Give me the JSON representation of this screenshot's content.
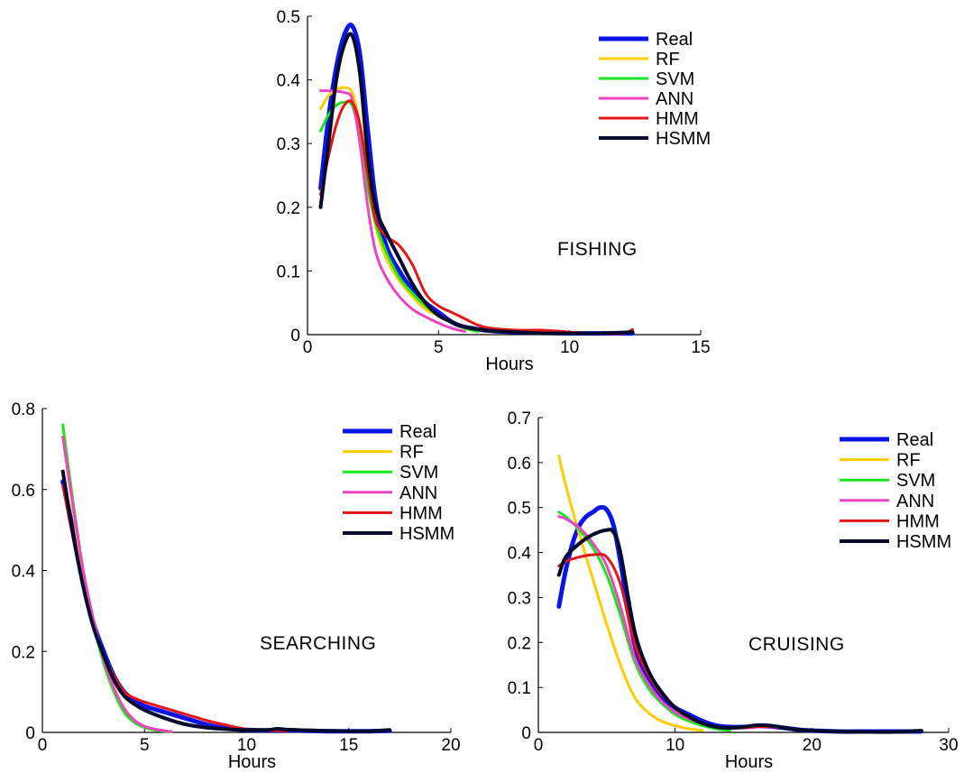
{
  "series_styles": [
    {
      "name": "Real",
      "color": "#0a14e6"
    },
    {
      "name": "RF",
      "color": "#ffcc00"
    },
    {
      "name": "SVM",
      "color": "#19e619"
    },
    {
      "name": "ANN",
      "color": "#ee44c4"
    },
    {
      "name": "HMM",
      "color": "#e61414"
    },
    {
      "name": "HSMM",
      "color": "#050a2a"
    }
  ],
  "chart_data": [
    {
      "type": "line",
      "title": "",
      "annotation": "FISHING",
      "xlabel": "Hours",
      "ylabel": "",
      "xlim": [
        0,
        15
      ],
      "ylim": [
        0,
        0.5
      ],
      "xticks": [
        0,
        5,
        10,
        15
      ],
      "yticks": [
        0,
        0.1,
        0.2,
        0.3,
        0.4,
        0.5
      ],
      "ytick_labels": [
        "0",
        "0.1",
        "0.2",
        "0.3",
        "0.4",
        "0.5"
      ],
      "legend_position": "top-right",
      "series": [
        {
          "name": "Real",
          "x": [
            0.5,
            0.8,
            1.1,
            1.4,
            1.7,
            2.0,
            2.3,
            2.6,
            3.0,
            3.5,
            4.0,
            4.5,
            5.0,
            5.5,
            6.0,
            7.0,
            8.0,
            9.0,
            10.0,
            11.0,
            12.4
          ],
          "y": [
            0.23,
            0.34,
            0.42,
            0.47,
            0.485,
            0.44,
            0.32,
            0.21,
            0.14,
            0.1,
            0.07,
            0.05,
            0.035,
            0.02,
            0.012,
            0.006,
            0.004,
            0.003,
            0.002,
            0.002,
            0.002
          ]
        },
        {
          "name": "RF",
          "x": [
            0.5,
            0.8,
            1.1,
            1.4,
            1.7,
            2.0,
            2.3,
            2.6,
            3.0,
            3.5,
            4.0,
            4.5,
            5.0,
            5.5,
            6.0,
            6.5
          ],
          "y": [
            0.355,
            0.375,
            0.385,
            0.388,
            0.38,
            0.33,
            0.24,
            0.17,
            0.12,
            0.085,
            0.06,
            0.04,
            0.03,
            0.02,
            0.01,
            0.005
          ]
        },
        {
          "name": "SVM",
          "x": [
            0.5,
            0.8,
            1.1,
            1.4,
            1.7,
            2.0,
            2.3,
            2.6,
            3.0,
            3.5,
            4.0,
            4.5,
            5.0,
            5.5,
            6.0,
            6.5
          ],
          "y": [
            0.32,
            0.345,
            0.36,
            0.365,
            0.36,
            0.31,
            0.23,
            0.175,
            0.13,
            0.09,
            0.065,
            0.045,
            0.03,
            0.02,
            0.01,
            0.005
          ]
        },
        {
          "name": "ANN",
          "x": [
            0.5,
            0.8,
            1.1,
            1.4,
            1.7,
            2.0,
            2.3,
            2.6,
            3.0,
            3.5,
            4.0,
            4.5,
            5.0,
            5.5,
            6.0
          ],
          "y": [
            0.383,
            0.383,
            0.382,
            0.38,
            0.37,
            0.3,
            0.2,
            0.13,
            0.09,
            0.06,
            0.04,
            0.028,
            0.018,
            0.01,
            0.005
          ]
        },
        {
          "name": "HMM",
          "x": [
            0.5,
            0.8,
            1.1,
            1.4,
            1.7,
            2.0,
            2.3,
            2.6,
            3.0,
            3.5,
            4.0,
            4.5,
            5.0,
            5.5,
            6.0,
            6.5,
            7.0,
            8.0,
            9.0,
            10.0,
            11.0,
            12.0,
            12.4
          ],
          "y": [
            0.22,
            0.28,
            0.33,
            0.36,
            0.365,
            0.33,
            0.25,
            0.18,
            0.155,
            0.14,
            0.11,
            0.065,
            0.045,
            0.035,
            0.025,
            0.015,
            0.01,
            0.007,
            0.007,
            0.004,
            0.002,
            0.002,
            0.008
          ]
        },
        {
          "name": "HSMM",
          "x": [
            0.5,
            0.8,
            1.1,
            1.4,
            1.7,
            2.0,
            2.3,
            2.6,
            3.0,
            3.5,
            4.0,
            4.5,
            5.0,
            5.5,
            6.0,
            7.0,
            8.0,
            9.0,
            10.0,
            11.0,
            12.4
          ],
          "y": [
            0.2,
            0.3,
            0.4,
            0.455,
            0.47,
            0.41,
            0.28,
            0.2,
            0.16,
            0.12,
            0.08,
            0.05,
            0.03,
            0.02,
            0.012,
            0.006,
            0.004,
            0.002,
            0.002,
            0.002,
            0.004
          ]
        }
      ]
    },
    {
      "type": "line",
      "title": "",
      "annotation": "SEARCHING",
      "xlabel": "Hours",
      "ylabel": "",
      "xlim": [
        0,
        20
      ],
      "ylim": [
        0,
        0.8
      ],
      "xticks": [
        0,
        5,
        10,
        15,
        20
      ],
      "yticks": [
        0,
        0.2,
        0.4,
        0.6,
        0.8
      ],
      "ytick_labels": [
        "0",
        "0.2",
        "0.4",
        "0.6",
        "0.8"
      ],
      "legend_position": "top-right",
      "series": [
        {
          "name": "Real",
          "x": [
            1.0,
            1.5,
            2.0,
            2.5,
            3.0,
            3.5,
            4.0,
            4.5,
            5.0,
            6.0,
            7.0,
            8.0,
            9.0,
            10.0,
            11.0,
            12.0,
            13.0,
            14.0,
            15.0,
            16.0,
            17.0
          ],
          "y": [
            0.62,
            0.5,
            0.37,
            0.27,
            0.2,
            0.14,
            0.1,
            0.08,
            0.065,
            0.05,
            0.035,
            0.02,
            0.01,
            0.006,
            0.005,
            0.005,
            0.004,
            0.003,
            0.003,
            0.003,
            0.004
          ]
        },
        {
          "name": "RF",
          "x": [
            1.0,
            1.5,
            2.0,
            2.5,
            3.0,
            3.5,
            4.0,
            4.5,
            5.0,
            5.5,
            6.0,
            6.3
          ],
          "y": [
            0.73,
            0.55,
            0.39,
            0.27,
            0.18,
            0.11,
            0.06,
            0.03,
            0.015,
            0.008,
            0.004,
            0.002
          ]
        },
        {
          "name": "SVM",
          "x": [
            1.0,
            1.5,
            2.0,
            2.5,
            3.0,
            3.5,
            4.0,
            4.5,
            5.0,
            5.5,
            6.0,
            6.3
          ],
          "y": [
            0.76,
            0.57,
            0.4,
            0.27,
            0.17,
            0.1,
            0.05,
            0.025,
            0.012,
            0.006,
            0.003,
            0.002
          ]
        },
        {
          "name": "ANN",
          "x": [
            1.0,
            1.5,
            2.0,
            2.5,
            3.0,
            3.5,
            4.0,
            4.5,
            5.0,
            5.5,
            6.0,
            6.3
          ],
          "y": [
            0.73,
            0.56,
            0.4,
            0.28,
            0.18,
            0.11,
            0.06,
            0.03,
            0.015,
            0.008,
            0.004,
            0.002
          ]
        },
        {
          "name": "HMM",
          "x": [
            1.0,
            1.5,
            2.0,
            2.5,
            3.0,
            3.5,
            4.0,
            4.5,
            5.0,
            6.0,
            7.0,
            8.0,
            9.0,
            10.0,
            11.0,
            12.0
          ],
          "y": [
            0.61,
            0.48,
            0.36,
            0.26,
            0.19,
            0.14,
            0.1,
            0.085,
            0.075,
            0.06,
            0.045,
            0.03,
            0.018,
            0.008,
            0.005,
            0.004
          ]
        },
        {
          "name": "HSMM",
          "x": [
            1.0,
            1.5,
            2.0,
            2.5,
            3.0,
            3.5,
            4.0,
            4.5,
            5.0,
            6.0,
            7.0,
            8.0,
            9.0,
            10.0,
            11.0,
            11.5,
            12.0,
            13.0,
            14.0,
            15.0,
            16.0,
            17.0
          ],
          "y": [
            0.645,
            0.49,
            0.36,
            0.26,
            0.19,
            0.13,
            0.09,
            0.07,
            0.055,
            0.035,
            0.02,
            0.012,
            0.008,
            0.006,
            0.006,
            0.009,
            0.007,
            0.005,
            0.004,
            0.003,
            0.003,
            0.006
          ]
        }
      ]
    },
    {
      "type": "line",
      "title": "",
      "annotation": "CRUISING",
      "xlabel": "Hours",
      "ylabel": "",
      "xlim": [
        0,
        30
      ],
      "ylim": [
        0,
        0.7
      ],
      "xticks": [
        0,
        10,
        20,
        30
      ],
      "yticks": [
        0,
        0.1,
        0.2,
        0.3,
        0.4,
        0.5,
        0.6,
        0.7
      ],
      "ytick_labels": [
        "0",
        "0.1",
        "0.2",
        "0.3",
        "0.4",
        "0.5",
        "0.6",
        "0.7"
      ],
      "legend_position": "top-right",
      "series": [
        {
          "name": "Real",
          "x": [
            1.5,
            2.0,
            2.5,
            3.0,
            3.5,
            4.0,
            4.5,
            5.0,
            5.5,
            6.0,
            7.0,
            8.0,
            9.0,
            10.0,
            11.0,
            12.0,
            13.0,
            14.0,
            15.0,
            16.0,
            17.0,
            18.0,
            19.0,
            20.0,
            22.0,
            24.0,
            26.0,
            28.0
          ],
          "y": [
            0.28,
            0.36,
            0.42,
            0.46,
            0.48,
            0.49,
            0.5,
            0.495,
            0.46,
            0.38,
            0.2,
            0.12,
            0.08,
            0.055,
            0.04,
            0.025,
            0.015,
            0.012,
            0.012,
            0.014,
            0.013,
            0.01,
            0.006,
            0.004,
            0.002,
            0.002,
            0.002,
            0.002
          ]
        },
        {
          "name": "RF",
          "x": [
            1.5,
            2.0,
            3.0,
            4.0,
            5.0,
            6.0,
            7.0,
            8.0,
            9.0,
            10.0,
            11.0,
            12.0
          ],
          "y": [
            0.615,
            0.55,
            0.44,
            0.34,
            0.24,
            0.15,
            0.08,
            0.045,
            0.025,
            0.015,
            0.008,
            0.004
          ]
        },
        {
          "name": "SVM",
          "x": [
            1.5,
            2.0,
            3.0,
            4.0,
            5.0,
            6.0,
            7.0,
            8.0,
            9.0,
            10.0,
            11.0,
            12.0,
            13.0,
            14.0
          ],
          "y": [
            0.49,
            0.48,
            0.45,
            0.41,
            0.35,
            0.26,
            0.16,
            0.1,
            0.065,
            0.04,
            0.025,
            0.015,
            0.008,
            0.004
          ]
        },
        {
          "name": "ANN",
          "x": [
            1.5,
            2.0,
            3.0,
            4.0,
            5.0,
            6.0,
            7.0,
            8.0,
            9.0,
            10.0,
            11.0,
            12.0,
            13.0,
            14.0,
            15.0,
            16.0,
            17.0,
            18.0,
            19.0,
            20.0
          ],
          "y": [
            0.48,
            0.475,
            0.455,
            0.42,
            0.37,
            0.28,
            0.17,
            0.11,
            0.07,
            0.045,
            0.03,
            0.02,
            0.012,
            0.01,
            0.01,
            0.012,
            0.012,
            0.01,
            0.006,
            0.004
          ]
        },
        {
          "name": "HMM",
          "x": [
            1.5,
            2.0,
            3.0,
            4.0,
            5.0,
            6.0,
            7.0,
            8.0,
            9.0,
            10.0,
            11.0,
            12.0,
            13.0,
            14.0,
            15.0,
            16.0,
            17.0,
            18.0,
            19.0,
            20.0,
            22.0,
            24.0
          ],
          "y": [
            0.37,
            0.38,
            0.39,
            0.395,
            0.39,
            0.33,
            0.2,
            0.13,
            0.085,
            0.055,
            0.035,
            0.02,
            0.012,
            0.01,
            0.01,
            0.013,
            0.013,
            0.01,
            0.006,
            0.004,
            0.002,
            0.001
          ]
        },
        {
          "name": "HSMM",
          "x": [
            1.5,
            2.0,
            3.0,
            4.0,
            5.0,
            5.5,
            6.0,
            7.0,
            8.0,
            9.0,
            10.0,
            11.0,
            12.0,
            13.0,
            14.0,
            15.0,
            16.0,
            17.0,
            18.0,
            19.0,
            20.0,
            22.0,
            24.0,
            26.0,
            28.0
          ],
          "y": [
            0.35,
            0.39,
            0.42,
            0.44,
            0.45,
            0.445,
            0.4,
            0.23,
            0.14,
            0.09,
            0.055,
            0.035,
            0.02,
            0.012,
            0.01,
            0.012,
            0.016,
            0.015,
            0.01,
            0.006,
            0.004,
            0.002,
            0.001,
            0.001,
            0.004
          ]
        }
      ]
    }
  ]
}
